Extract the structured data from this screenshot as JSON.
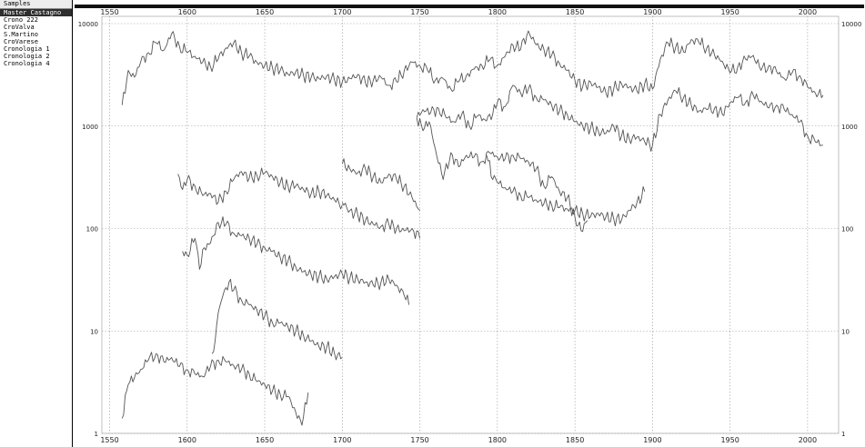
{
  "sidebar": {
    "header": "Samples",
    "items": [
      "Master Castagno",
      "Crono 222",
      "CroValva",
      "S.Martino",
      "CroVarese",
      "Cronologia 1",
      "Cronologia 2",
      "Cronologia 4"
    ],
    "selected": 0
  },
  "colors": {
    "line": "#555555",
    "grid": "#999999",
    "selection": "#2e2e2e"
  },
  "chart_data": {
    "type": "line",
    "y_scale": "log",
    "grid": true,
    "xlim": [
      1545,
      2020
    ],
    "ylim": [
      1,
      10000
    ],
    "x_ticks": [
      1550,
      1600,
      1650,
      1700,
      1750,
      1800,
      1850,
      1900,
      1950,
      2000
    ],
    "y_ticks": [
      1,
      10,
      100,
      1000,
      10000
    ],
    "y_tick_labels": [
      "1",
      "10",
      "100",
      "1000",
      "10000"
    ],
    "series": [
      {
        "x": [
          1558,
          1562,
          1566,
          1570,
          1575,
          1580,
          1585,
          1590,
          1595,
          1600,
          1605,
          1610,
          1615,
          1620,
          1625,
          1630,
          1635,
          1640,
          1645,
          1650,
          1655,
          1660,
          1665,
          1670,
          1675,
          1680,
          1685,
          1690,
          1695,
          1700,
          1705,
          1710,
          1715,
          1720,
          1725,
          1730,
          1735,
          1740,
          1745,
          1750,
          1755,
          1760,
          1765,
          1770,
          1775,
          1780,
          1785,
          1790,
          1795,
          1800,
          1805,
          1810,
          1815,
          1820,
          1825,
          1830,
          1835,
          1840,
          1845,
          1850,
          1855,
          1860,
          1865,
          1870,
          1875,
          1880,
          1885,
          1890,
          1895,
          1900,
          1905,
          1910,
          1915,
          1920,
          1925,
          1930,
          1935,
          1940,
          1945,
          1950,
          1955,
          1960,
          1965,
          1970,
          1975,
          1980,
          1985,
          1990,
          1995,
          2000,
          2005,
          2010
        ],
        "y": [
          1600,
          3500,
          3000,
          4200,
          5200,
          6500,
          5500,
          8000,
          6000,
          5200,
          4800,
          4200,
          3800,
          4500,
          5800,
          6500,
          5200,
          4800,
          4200,
          3900,
          3700,
          3500,
          3200,
          3400,
          3100,
          3000,
          2900,
          3100,
          2800,
          2700,
          2900,
          3200,
          2600,
          2800,
          3000,
          2500,
          2700,
          3500,
          4200,
          3900,
          3500,
          2800,
          2900,
          2300,
          2700,
          3100,
          3600,
          3900,
          4400,
          3900,
          4800,
          6200,
          5600,
          8500,
          6200,
          5600,
          4900,
          4100,
          3500,
          2800,
          2400,
          2700,
          2400,
          2100,
          2300,
          2600,
          2400,
          2200,
          2600,
          2300,
          4500,
          6500,
          5900,
          5300,
          7000,
          6500,
          5800,
          4900,
          4300,
          3300,
          3800,
          4500,
          4900,
          3500,
          3900,
          3400,
          2900,
          3300,
          3100,
          2400,
          2100,
          2000
        ]
      },
      {
        "x": [
          1748,
          1752,
          1757,
          1762,
          1767,
          1772,
          1777,
          1782,
          1787,
          1792,
          1797,
          1800,
          1805,
          1810,
          1815,
          1820,
          1825,
          1830,
          1835,
          1840,
          1845,
          1850,
          1855,
          1860,
          1865,
          1870,
          1875,
          1880,
          1885,
          1890,
          1895,
          1900,
          1905,
          1910,
          1915,
          1920,
          1925,
          1930,
          1935,
          1940,
          1945,
          1950,
          1955,
          1960,
          1965,
          1970,
          1975,
          1980,
          1985,
          1990,
          1995,
          2000,
          2005,
          2010
        ],
        "y": [
          1200,
          1450,
          1350,
          1500,
          1200,
          1100,
          1300,
          1000,
          1250,
          1150,
          1300,
          1700,
          1550,
          2500,
          2100,
          2300,
          1900,
          1800,
          1600,
          1400,
          1300,
          1100,
          1000,
          950,
          900,
          850,
          1000,
          800,
          750,
          780,
          700,
          650,
          1300,
          1800,
          2200,
          1900,
          1600,
          1400,
          1450,
          1500,
          1300,
          1700,
          1900,
          1700,
          2000,
          1750,
          1500,
          1600,
          1450,
          1300,
          1100,
          800,
          700,
          650
        ]
      },
      {
        "x": [
          1748,
          1752,
          1756,
          1760,
          1765,
          1770,
          1775,
          1780,
          1785,
          1790,
          1795,
          1800,
          1805,
          1810,
          1815,
          1820,
          1825,
          1830,
          1835,
          1840,
          1845,
          1850,
          1854,
          1858
        ],
        "y": [
          1200,
          900,
          1100,
          600,
          300,
          550,
          400,
          520,
          500,
          450,
          550,
          500,
          480,
          520,
          480,
          450,
          380,
          260,
          320,
          230,
          200,
          130,
          95,
          120
        ]
      },
      {
        "x": [
          1793,
          1797,
          1800,
          1805,
          1810,
          1815,
          1820,
          1825,
          1830,
          1835,
          1840,
          1845,
          1850,
          1855,
          1860,
          1865,
          1870,
          1875,
          1880,
          1885,
          1890,
          1895
        ],
        "y": [
          520,
          300,
          280,
          250,
          230,
          210,
          200,
          190,
          175,
          170,
          160,
          155,
          150,
          140,
          130,
          140,
          130,
          125,
          120,
          150,
          180,
          230
        ]
      },
      {
        "x": [
          1594,
          1597,
          1600,
          1605,
          1610,
          1615,
          1620,
          1625,
          1630,
          1635,
          1640,
          1645,
          1650,
          1655,
          1660,
          1665,
          1670,
          1675,
          1680,
          1685,
          1690,
          1695,
          1700
        ],
        "y": [
          340,
          240,
          300,
          260,
          210,
          220,
          180,
          230,
          300,
          360,
          310,
          330,
          350,
          320,
          280,
          260,
          260,
          240,
          220,
          230,
          210,
          190,
          170
        ]
      },
      {
        "x": [
          1700,
          1705,
          1710,
          1715,
          1720,
          1725,
          1730,
          1735,
          1740,
          1745,
          1750
        ],
        "y": [
          180,
          150,
          135,
          120,
          110,
          105,
          110,
          100,
          95,
          100,
          80
        ]
      },
      {
        "x": [
          1700,
          1705,
          1710,
          1715,
          1720,
          1725,
          1730,
          1735,
          1740,
          1745,
          1750
        ],
        "y": [
          430,
          380,
          350,
          380,
          320,
          280,
          340,
          300,
          260,
          200,
          150
        ]
      },
      {
        "x": [
          1597,
          1600,
          1605,
          1608,
          1611,
          1614,
          1617,
          1620,
          1625,
          1630,
          1635,
          1640,
          1645,
          1650,
          1655,
          1660,
          1665,
          1670,
          1675,
          1680,
          1685,
          1690,
          1695,
          1700,
          1705,
          1710,
          1715,
          1720,
          1725,
          1730,
          1735,
          1740,
          1743
        ],
        "y": [
          60,
          55,
          80,
          40,
          65,
          70,
          85,
          115,
          110,
          90,
          85,
          80,
          70,
          65,
          60,
          52,
          48,
          42,
          38,
          35,
          34,
          32,
          34,
          36,
          33,
          32,
          30,
          28,
          30,
          32,
          28,
          22,
          18
        ]
      },
      {
        "x": [
          1616,
          1618,
          1620,
          1623,
          1627,
          1630,
          1635,
          1640,
          1645,
          1650,
          1655,
          1660,
          1665,
          1670,
          1675,
          1680,
          1685,
          1690,
          1695,
          1700
        ],
        "y": [
          6,
          8,
          15,
          22,
          30,
          25,
          20,
          18,
          16,
          14,
          12,
          12,
          11,
          10,
          9,
          8,
          7,
          7,
          6,
          5.5
        ]
      },
      {
        "x": [
          1558,
          1562,
          1566,
          1570,
          1575,
          1580,
          1585,
          1590,
          1595,
          1600,
          1605,
          1610,
          1615,
          1620,
          1625,
          1630,
          1635,
          1640,
          1645,
          1650,
          1655,
          1660,
          1665,
          1670,
          1674,
          1678
        ],
        "y": [
          1.4,
          3,
          3.5,
          4.2,
          5.2,
          6,
          5,
          5.5,
          4.5,
          4.2,
          3.8,
          3.6,
          4.5,
          5.2,
          5,
          4.6,
          4.2,
          3.8,
          3.2,
          3,
          2.6,
          2.4,
          2.3,
          1.6,
          1.2,
          2.5
        ]
      }
    ]
  }
}
